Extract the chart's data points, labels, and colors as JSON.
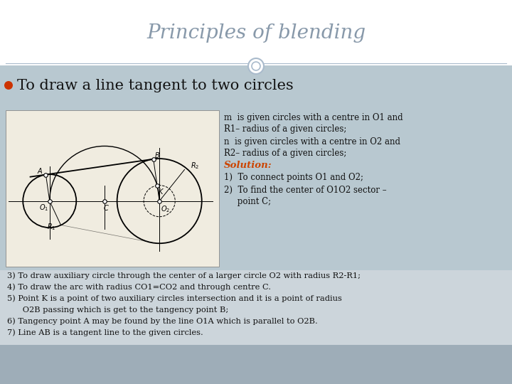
{
  "title": "Principles of blending",
  "title_color": "#8899aa",
  "title_fontsize": 20,
  "bg_white": "#ffffff",
  "bg_gray": "#9eadb8",
  "bg_light_gray": "#b8c8d0",
  "bullet_color": "#cc3300",
  "bullet_text": "To draw a line tangent to two circles",
  "diagram_bg": "#f0ece0",
  "solution_color": "#cc4400",
  "text_color": "#111111",
  "header_line_color": "#aabbcc",
  "bottom_bg": "#c8d4da",
  "right_lines": [
    "m  is given circles with a centre in O1 and",
    "R1– radius of a given circles;",
    "n  is given circles with a centre in O2 and",
    "R2– radius of a given circles;",
    "Solution:",
    "1)  To connect points O1 and O2;",
    "2)  To find the center of O1O2 sector –",
    "     point C;"
  ],
  "bottom_lines": [
    "3) To draw auxiliary circle through the center of a larger circle O2 with radius R2-R1;",
    "4) To draw the arc with radius CO1=CO2 and through centre C.",
    "5) Point K is a point of two auxiliary circles intersection and it is a point of radius",
    "      O2B passing which is get to the tangency point B;",
    "6) Tangency point A may be found by the line O1A which is parallel to O2B.",
    "7) Line AB is a tangent line to the given circles."
  ]
}
